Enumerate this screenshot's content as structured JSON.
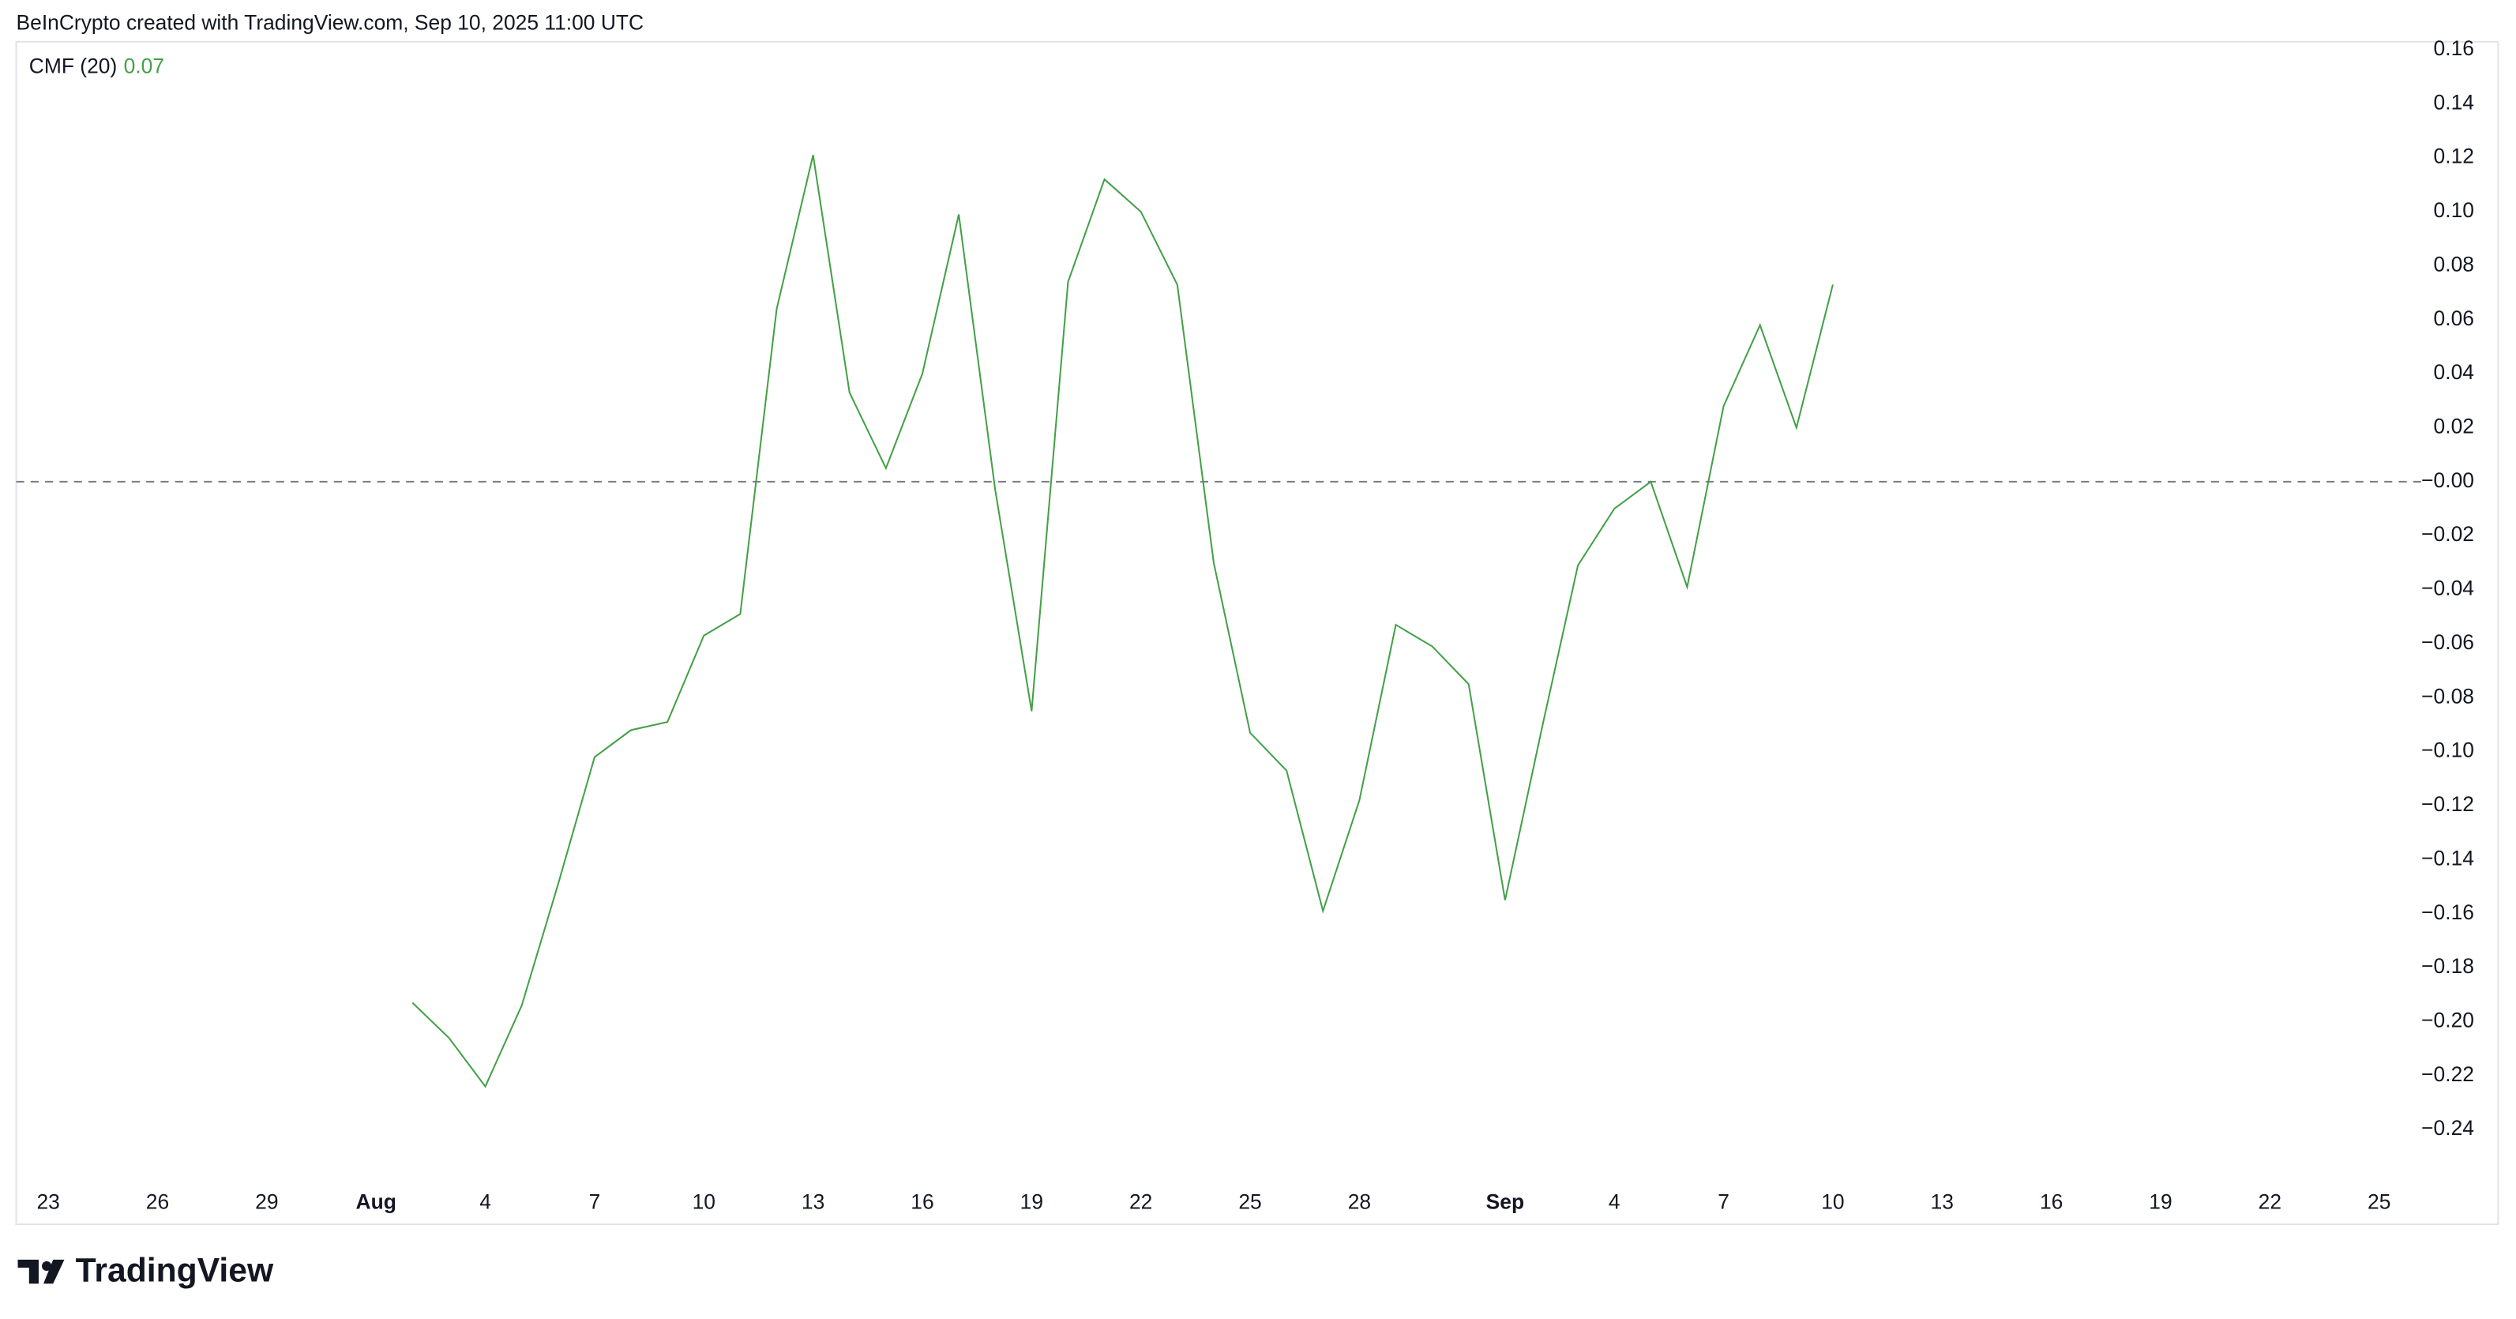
{
  "header": "BeInCrypto created with TradingView.com, Sep 10, 2025 11:00 UTC",
  "brand": "TradingView",
  "chart_data": {
    "type": "line",
    "indicator": "CMF (20)",
    "indicator_value": 0.07,
    "categories": [
      "23",
      null,
      null,
      "26",
      null,
      null,
      "29",
      null,
      null,
      "Aug",
      null,
      null,
      "4",
      null,
      null,
      "7",
      null,
      null,
      "10",
      null,
      null,
      "13",
      null,
      null,
      "16",
      null,
      null,
      "19",
      null,
      null,
      "22",
      null,
      null,
      "25",
      null,
      null,
      "28",
      null,
      null,
      null,
      "Sep",
      null,
      null,
      "4",
      null,
      null,
      "7",
      null,
      null,
      "10",
      null,
      null,
      "13",
      null,
      null,
      "16",
      null,
      null,
      "19",
      null,
      null,
      "22",
      null,
      null,
      "25"
    ],
    "series": [
      {
        "name": "CMF (20)",
        "color": "#43a047",
        "values": [
          null,
          null,
          null,
          null,
          null,
          null,
          null,
          null,
          null,
          null,
          -0.193,
          -0.206,
          -0.224,
          -0.194,
          -0.149,
          -0.102,
          -0.092,
          -0.089,
          -0.057,
          -0.049,
          0.064,
          0.121,
          0.033,
          0.005,
          0.04,
          0.099,
          -0.003,
          -0.085,
          0.074,
          0.112,
          0.1,
          0.073,
          -0.03,
          -0.093,
          -0.107,
          -0.159,
          -0.118,
          -0.053,
          -0.061,
          -0.075,
          -0.155,
          -0.092,
          -0.031,
          -0.01,
          0.0,
          -0.039,
          0.028,
          0.058,
          0.02,
          0.073,
          null,
          null,
          null,
          null,
          null,
          null,
          null,
          null,
          null,
          null,
          null,
          null,
          null,
          null,
          null
        ]
      }
    ],
    "baseline": 0,
    "ylim": [
      -0.24,
      0.16
    ],
    "yticks": [
      0.16,
      0.14,
      0.12,
      {
        "value": 0.1,
        "label": "0.10"
      },
      0.08,
      0.06,
      0.04,
      0.02,
      {
        "value": 0,
        "label": "−0.00"
      },
      {
        "value": -0.02,
        "label": "−0.02"
      },
      {
        "value": -0.04,
        "label": "−0.04"
      },
      {
        "value": -0.06,
        "label": "−0.06"
      },
      {
        "value": -0.08,
        "label": "−0.08"
      },
      {
        "value": -0.1,
        "label": "−0.10"
      },
      {
        "value": -0.12,
        "label": "−0.12"
      },
      {
        "value": -0.14,
        "label": "−0.14"
      },
      {
        "value": -0.16,
        "label": "−0.16"
      },
      {
        "value": -0.18,
        "label": "−0.18"
      },
      {
        "value": -0.2,
        "label": "−0.20"
      },
      {
        "value": -0.22,
        "label": "−0.22"
      },
      {
        "value": -0.24,
        "label": "−0.24"
      }
    ]
  }
}
